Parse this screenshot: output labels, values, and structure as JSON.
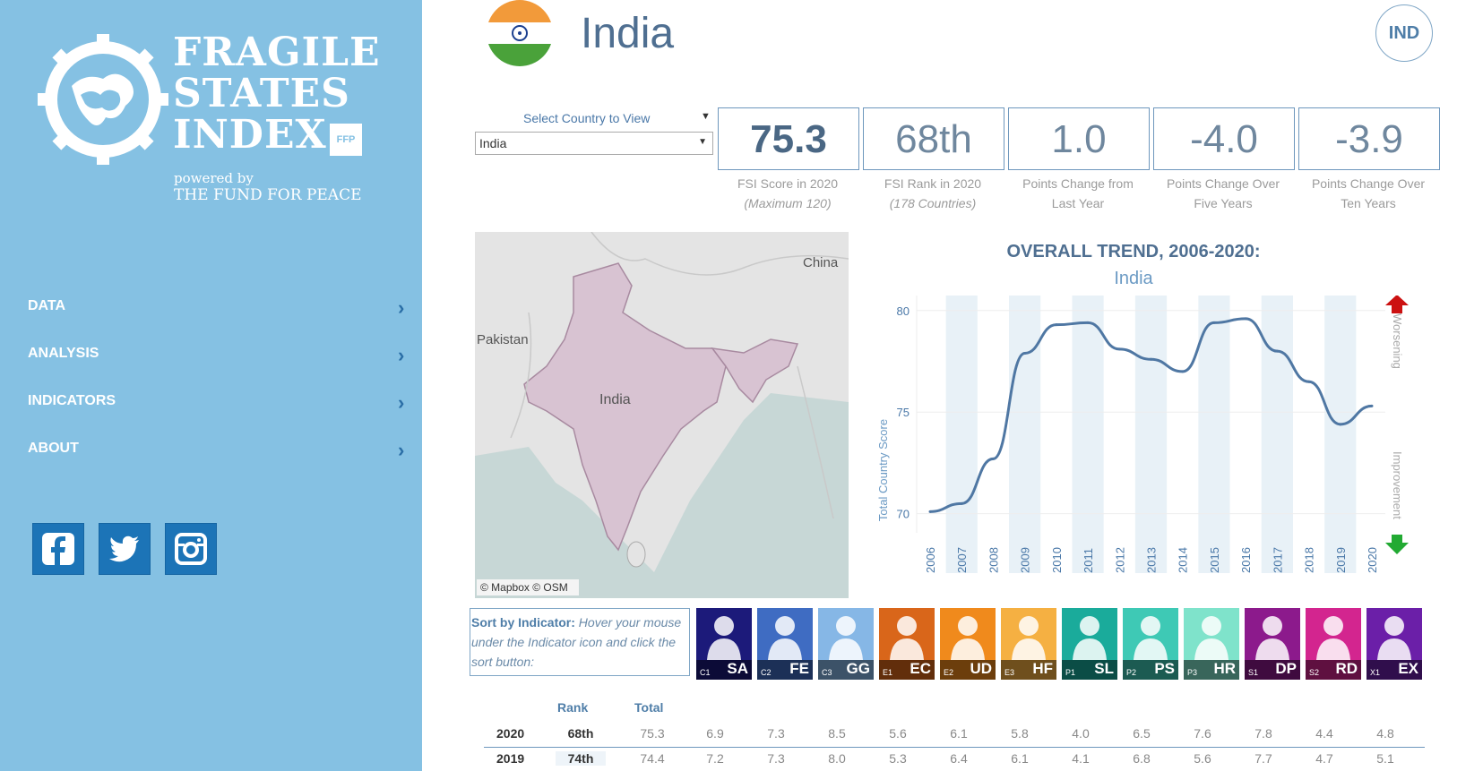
{
  "sidebar": {
    "logo": {
      "line1": "FRAGILE",
      "line2": "STATES",
      "line3": "INDEX",
      "badge": "FFP",
      "powered": "powered by",
      "fund": "THE FUND FOR PEACE"
    },
    "nav": [
      {
        "label": "DATA"
      },
      {
        "label": "ANALYSIS"
      },
      {
        "label": "INDICATORS"
      },
      {
        "label": "ABOUT"
      }
    ],
    "social": [
      "facebook-icon",
      "twitter-icon",
      "instagram-icon"
    ]
  },
  "header": {
    "country": "India",
    "iso": "IND"
  },
  "selector": {
    "label": "Select Country to View",
    "value": "India"
  },
  "kpis": [
    {
      "value": "75.3",
      "caption": "FSI Score in 2020",
      "caption2": "(Maximum 120)"
    },
    {
      "value": "68th",
      "caption": "FSI Rank in 2020",
      "caption2": "(178 Countries)"
    },
    {
      "value": "1.0",
      "caption": "Points Change from",
      "caption2": "Last Year"
    },
    {
      "value": "-4.0",
      "caption": "Points Change Over",
      "caption2": "Five Years"
    },
    {
      "value": "-3.9",
      "caption": "Points Change Over",
      "caption2": "Ten Years"
    }
  ],
  "map": {
    "labels": {
      "china": "China",
      "pakistan": "Pakistan",
      "india": "India"
    },
    "attribution": "© Mapbox  © OSM"
  },
  "chart_data": {
    "type": "line",
    "title": "OVERALL TREND, 2006-2020:",
    "subtitle": "India",
    "ylabel": "Total Country Score",
    "xlabel": "",
    "x": [
      "2006",
      "2007",
      "2008",
      "2009",
      "2010",
      "2011",
      "2012",
      "2013",
      "2014",
      "2015",
      "2016",
      "2017",
      "2018",
      "2019",
      "2020"
    ],
    "y": [
      70.1,
      70.5,
      72.7,
      77.9,
      79.3,
      79.4,
      78.1,
      77.6,
      77.0,
      79.4,
      79.6,
      78.0,
      76.5,
      74.4,
      75.3
    ],
    "ylim": [
      69.5,
      80.3
    ],
    "yticks": [
      70,
      75,
      80
    ],
    "grid": true,
    "annotations": {
      "up": "Worsening",
      "down": "Improvement"
    },
    "colors": {
      "line": "#4f77a3",
      "band": "#e8f1f7",
      "up": "#cc1111",
      "down": "#22aa33"
    }
  },
  "sort": {
    "title": "Sort by Indicator:",
    "text": "Hover your mouse under the Indicator icon and click the sort button:"
  },
  "indicators": [
    {
      "code": "SA",
      "sub": "C1",
      "color": "#1c1a7a",
      "icon": "security-apparatus-icon"
    },
    {
      "code": "FE",
      "sub": "C2",
      "color": "#3f6cc2",
      "icon": "factionalized-elites-icon"
    },
    {
      "code": "GG",
      "sub": "C3",
      "color": "#86b7e6",
      "icon": "group-grievance-icon"
    },
    {
      "code": "EC",
      "sub": "E1",
      "color": "#d9661a",
      "icon": "economic-decline-icon"
    },
    {
      "code": "UD",
      "sub": "E2",
      "color": "#f08a1c",
      "icon": "uneven-development-icon"
    },
    {
      "code": "HF",
      "sub": "E3",
      "color": "#f5b042",
      "icon": "human-flight-icon"
    },
    {
      "code": "SL",
      "sub": "P1",
      "color": "#1aab9b",
      "icon": "state-legitimacy-icon"
    },
    {
      "code": "PS",
      "sub": "P2",
      "color": "#3ec9b5",
      "icon": "public-services-icon"
    },
    {
      "code": "HR",
      "sub": "P3",
      "color": "#7fe3cb",
      "icon": "human-rights-icon"
    },
    {
      "code": "DP",
      "sub": "S1",
      "color": "#8c1a8c",
      "icon": "demographic-pressures-icon"
    },
    {
      "code": "RD",
      "sub": "S2",
      "color": "#d3258f",
      "icon": "refugees-idps-icon"
    },
    {
      "code": "EX",
      "sub": "X1",
      "color": "#6b1fa8",
      "icon": "external-intervention-icon"
    }
  ],
  "table": {
    "headers": {
      "rank": "Rank",
      "total": "Total"
    },
    "rows": [
      {
        "year": "2020",
        "rank": "68th",
        "total": "75.3",
        "values": [
          "6.9",
          "7.3",
          "8.5",
          "5.6",
          "6.1",
          "5.8",
          "4.0",
          "6.5",
          "7.6",
          "7.8",
          "4.4",
          "4.8"
        ]
      },
      {
        "year": "2019",
        "rank": "74th",
        "total": "74.4",
        "values": [
          "7.2",
          "7.3",
          "8.0",
          "5.3",
          "6.4",
          "6.1",
          "4.1",
          "6.8",
          "5.6",
          "7.7",
          "4.7",
          "5.1"
        ]
      }
    ]
  }
}
